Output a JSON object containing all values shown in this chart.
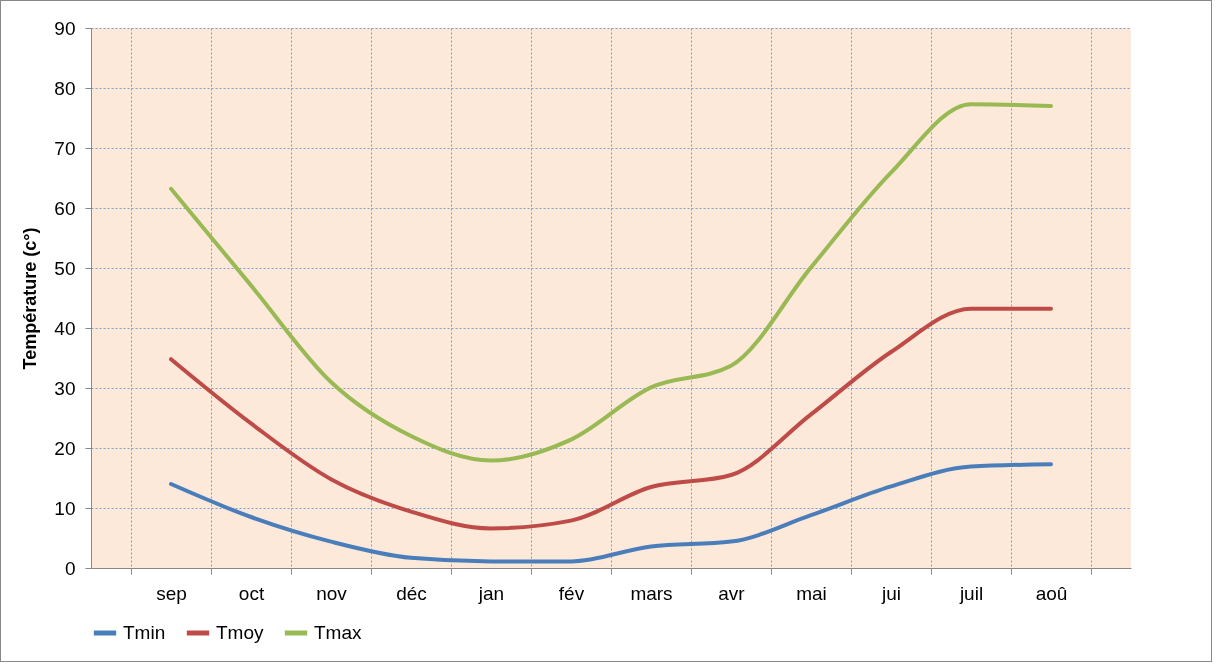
{
  "chart_data": {
    "type": "line",
    "ylabel": "Température (c°)",
    "categories": [
      "sep",
      "oct",
      "nov",
      "déc",
      "jan",
      "fév",
      "mars",
      "avr",
      "mai",
      "jui",
      "juil",
      "aoû"
    ],
    "series": [
      {
        "name": "Tmin",
        "color": "#4a7ebb",
        "values": [
          14.0,
          8.5,
          4.4,
          1.7,
          1.1,
          1.1,
          3.6,
          4.4,
          8.8,
          13.6,
          16.9,
          17.3
        ]
      },
      {
        "name": "Tmoy",
        "color": "#be4b48",
        "values": [
          34.8,
          24.1,
          14.8,
          9.4,
          6.6,
          7.9,
          13.5,
          15.5,
          25.6,
          36.0,
          43.2,
          43.2
        ]
      },
      {
        "name": "Tmax",
        "color": "#98b954",
        "values": [
          63.2,
          47.1,
          31.0,
          22.0,
          17.9,
          21.4,
          30.1,
          33.7,
          50.1,
          65.9,
          77.3,
          77.0
        ]
      }
    ],
    "ylim": [
      0,
      90
    ],
    "yticks": [
      0,
      10,
      20,
      30,
      40,
      50,
      60,
      70,
      80,
      90
    ],
    "grid": true,
    "legend": "bottom",
    "marker": "none",
    "line_style": "solid"
  }
}
